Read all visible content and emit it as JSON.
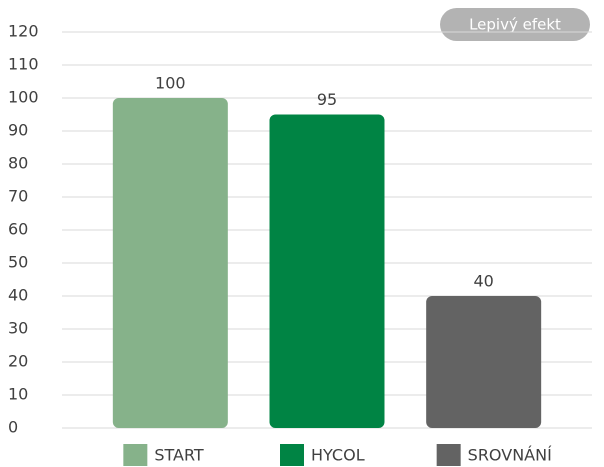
{
  "chart_data": {
    "type": "bar",
    "annotation": "Lepivý efekt",
    "categories": [
      "START",
      "HYCOL",
      "SROVNÁNÍ"
    ],
    "values": [
      100,
      95,
      40
    ],
    "colors": [
      "#86b28a",
      "#008444",
      "#636363"
    ],
    "ylim": [
      0,
      120
    ],
    "yticks": [
      0,
      10,
      20,
      30,
      40,
      50,
      60,
      70,
      80,
      90,
      100,
      110,
      120
    ],
    "grid": true
  }
}
